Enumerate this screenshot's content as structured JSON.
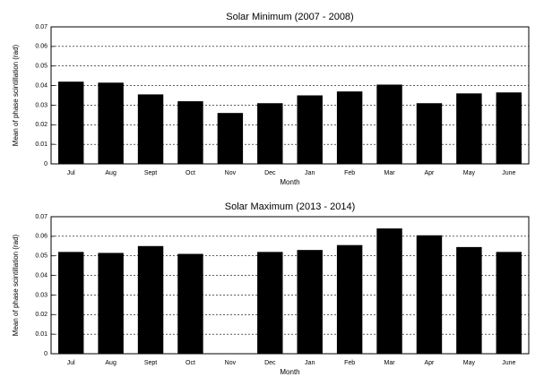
{
  "chart_data": [
    {
      "type": "bar",
      "title": "Solar Minimum (2007 - 2008)",
      "x_label": "Month",
      "y_label": "Mean of phase scintillation (rad)",
      "categories": [
        "Jul",
        "Aug",
        "Sept",
        "Oct",
        "Nov",
        "Dec",
        "Jan",
        "Feb",
        "Mar",
        "Apr",
        "May",
        "June"
      ],
      "values": [
        0.042,
        0.0415,
        0.0355,
        0.032,
        0.026,
        0.031,
        0.035,
        0.037,
        0.0405,
        0.031,
        0.036,
        0.0365
      ],
      "color": "#000000",
      "ylim": [
        0,
        0.07
      ],
      "yticks": [
        0,
        0.01,
        0.02,
        0.03,
        0.04,
        0.05,
        0.06,
        0.07
      ],
      "grid": true
    },
    {
      "type": "bar",
      "title": "Solar Maximum (2013 - 2014)",
      "x_label": "Month",
      "y_label": "Mean of phase scintillation (rad)",
      "categories": [
        "Jul",
        "Aug",
        "Sept",
        "Oct",
        "Nov",
        "Dec",
        "Jan",
        "Feb",
        "Mar",
        "Apr",
        "May",
        "June"
      ],
      "values": [
        0.052,
        0.0515,
        0.055,
        0.051,
        null,
        0.052,
        0.053,
        0.0555,
        0.064,
        0.0605,
        0.0545,
        0.052
      ],
      "color": "#000000",
      "ylim": [
        0,
        0.07
      ],
      "yticks": [
        0,
        0.01,
        0.02,
        0.03,
        0.04,
        0.05,
        0.06,
        0.07
      ],
      "grid": true
    }
  ]
}
